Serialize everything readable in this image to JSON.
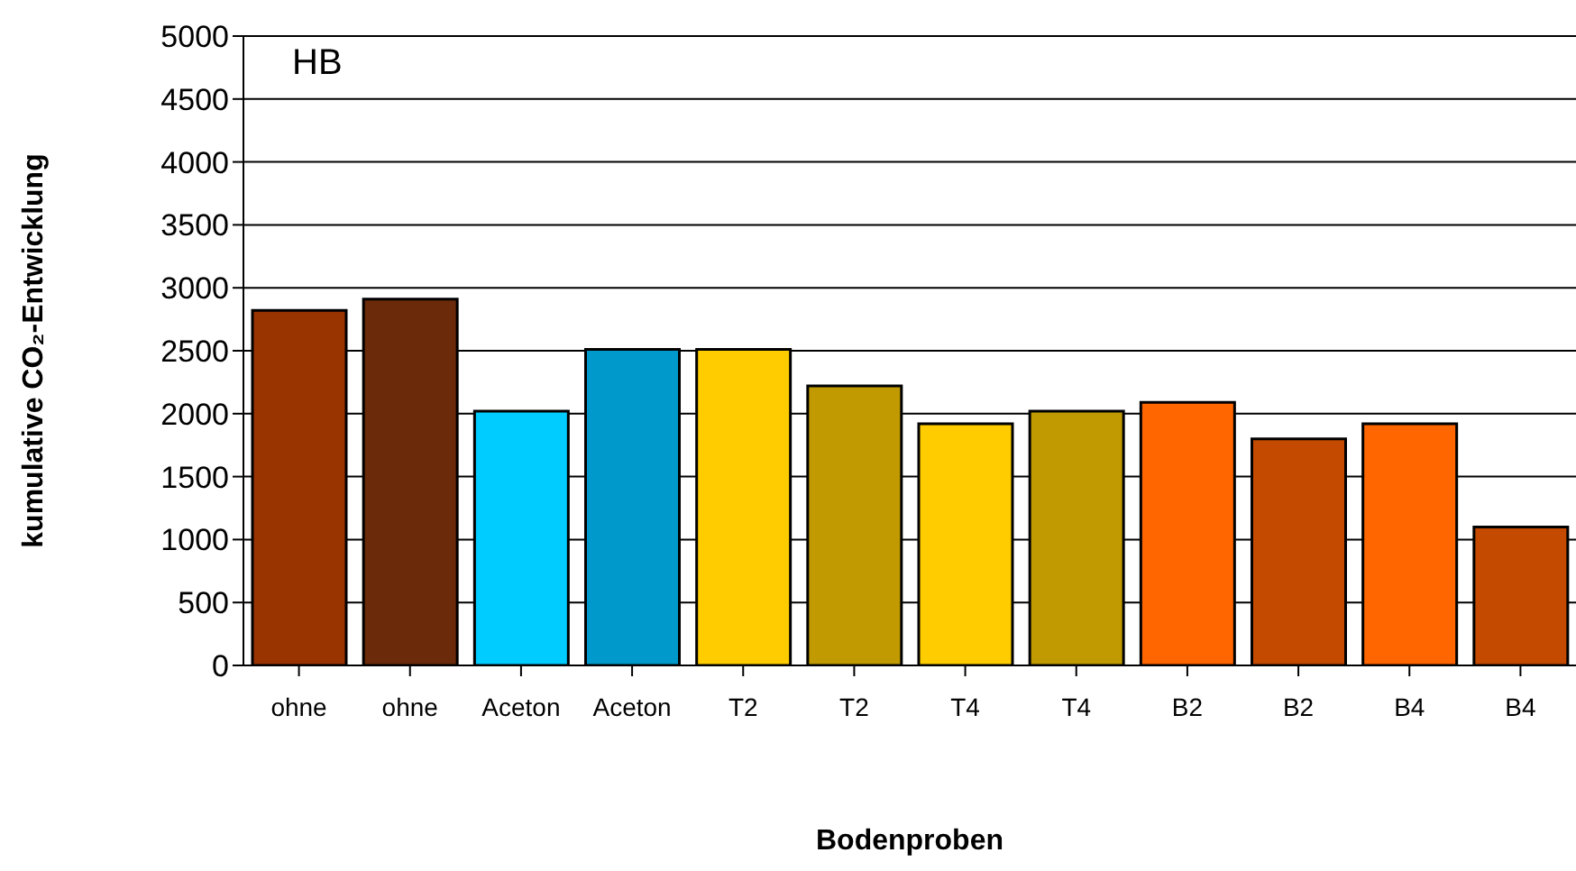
{
  "chart_data": {
    "type": "bar",
    "xlabel": "Bodenproben",
    "ylabel": "kumulative CO₂-Entwicklung",
    "annotations": [
      "HB"
    ],
    "categories": [
      "ohne",
      "ohne",
      "Aceton",
      "Aceton",
      "T2",
      "T2",
      "T4",
      "T4",
      "B2",
      "B2",
      "B4",
      "B4"
    ],
    "values": [
      2820,
      2910,
      2020,
      2510,
      2510,
      2220,
      1920,
      2020,
      2090,
      1800,
      1920,
      1100
    ],
    "colors": [
      "#993300",
      "#6b2a0a",
      "#00ccff",
      "#0099cc",
      "#ffcc00",
      "#c09a00",
      "#ffcc00",
      "#c09a00",
      "#ff6600",
      "#c44a00",
      "#ff6600",
      "#c44a00"
    ],
    "ylim": [
      0,
      5000
    ],
    "yticks": [
      0,
      500,
      1000,
      1500,
      2000,
      2500,
      3000,
      3500,
      4000,
      4500,
      5000
    ],
    "grid": "y"
  }
}
